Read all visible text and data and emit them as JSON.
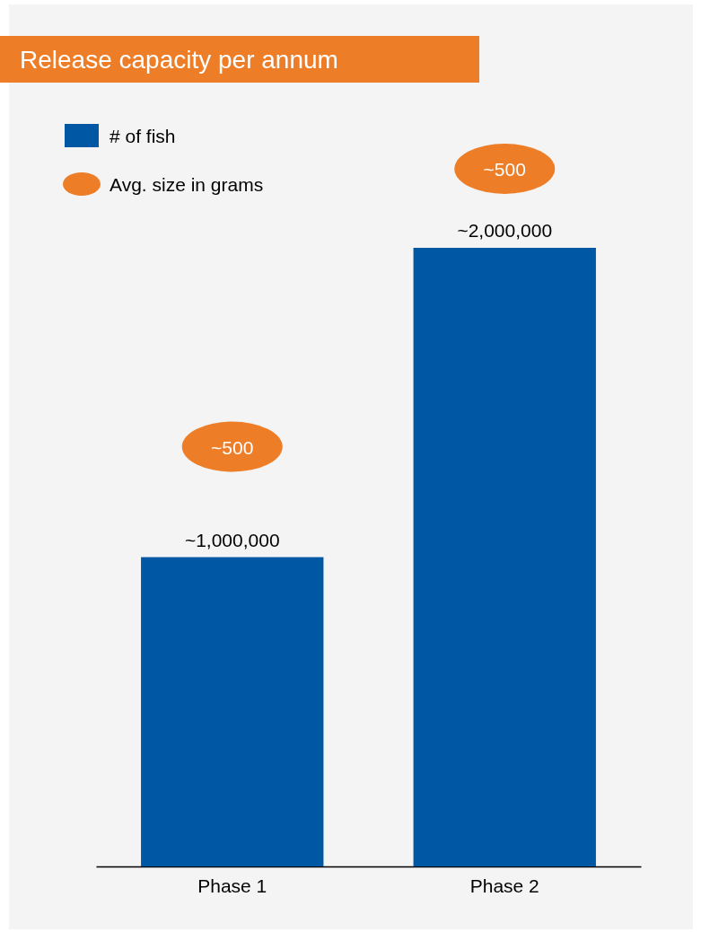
{
  "chart_data": {
    "type": "bar",
    "title": "Release capacity per annum",
    "categories": [
      "Phase 1",
      "Phase 2"
    ],
    "series": [
      {
        "name": "# of fish",
        "color": "#0057a4",
        "values": [
          1000000,
          2000000
        ],
        "value_labels": [
          "~1,000,000",
          "~2,000,000"
        ]
      },
      {
        "name": "Avg. size in grams",
        "type": "scatter",
        "color": "#ed7d27",
        "values": [
          null,
          null
        ]
      }
    ],
    "annotations": [
      "~500",
      "~500"
    ],
    "tick_labels": "x",
    "legend": "top left"
  }
}
